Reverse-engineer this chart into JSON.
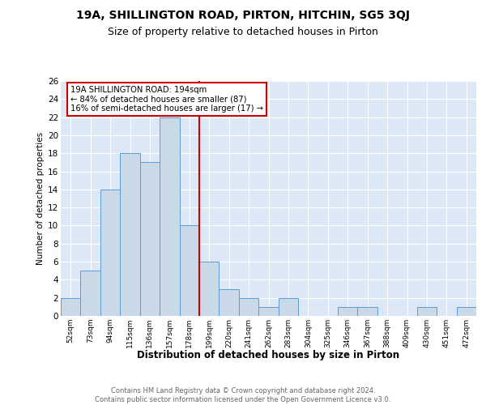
{
  "title_top": "19A, SHILLINGTON ROAD, PIRTON, HITCHIN, SG5 3QJ",
  "title_sub": "Size of property relative to detached houses in Pirton",
  "xlabel": "Distribution of detached houses by size in Pirton",
  "ylabel": "Number of detached properties",
  "footer_line1": "Contains HM Land Registry data © Crown copyright and database right 2024.",
  "footer_line2": "Contains public sector information licensed under the Open Government Licence v3.0.",
  "categories": [
    "52sqm",
    "73sqm",
    "94sqm",
    "115sqm",
    "136sqm",
    "157sqm",
    "178sqm",
    "199sqm",
    "220sqm",
    "241sqm",
    "262sqm",
    "283sqm",
    "304sqm",
    "325sqm",
    "346sqm",
    "367sqm",
    "388sqm",
    "409sqm",
    "430sqm",
    "451sqm",
    "472sqm"
  ],
  "values": [
    2,
    5,
    14,
    18,
    17,
    22,
    10,
    6,
    3,
    2,
    1,
    2,
    0,
    0,
    1,
    1,
    0,
    0,
    1,
    0,
    1
  ],
  "bar_color": "#c9d9e8",
  "bar_edge_color": "#5b9bd5",
  "property_label": "19A SHILLINGTON ROAD: 194sqm",
  "annotation_line1": "← 84% of detached houses are smaller (87)",
  "annotation_line2": "16% of semi-detached houses are larger (17) →",
  "vline_color": "#cc0000",
  "annotation_box_color": "#ffffff",
  "annotation_box_edge": "#cc0000",
  "ylim": [
    0,
    26
  ],
  "yticks": [
    0,
    2,
    4,
    6,
    8,
    10,
    12,
    14,
    16,
    18,
    20,
    22,
    24,
    26
  ],
  "plot_background": "#dce8f5",
  "grid_color": "#ffffff"
}
